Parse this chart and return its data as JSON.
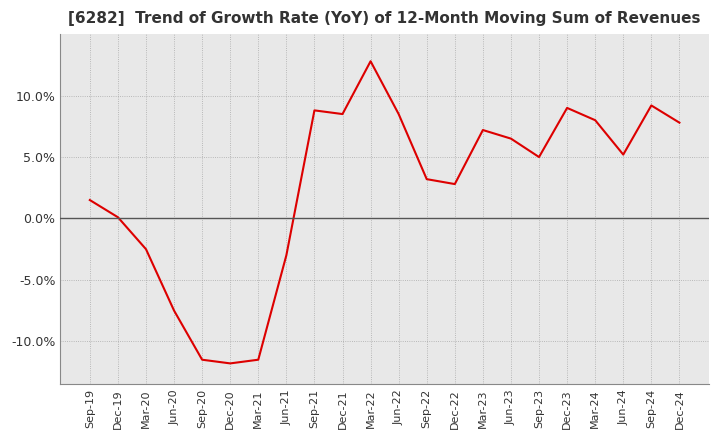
{
  "title": "[6282]  Trend of Growth Rate (YoY) of 12-Month Moving Sum of Revenues",
  "title_fontsize": 11,
  "line_color": "#dd0000",
  "background_color": "#ffffff",
  "plot_bg_color": "#e8e8e8",
  "grid_color": "#999999",
  "zero_line_color": "#555555",
  "x_labels": [
    "Sep-19",
    "Dec-19",
    "Mar-20",
    "Jun-20",
    "Sep-20",
    "Dec-20",
    "Mar-21",
    "Jun-21",
    "Sep-21",
    "Dec-21",
    "Mar-22",
    "Jun-22",
    "Sep-22",
    "Dec-22",
    "Mar-23",
    "Jun-23",
    "Sep-23",
    "Dec-23",
    "Mar-24",
    "Jun-24",
    "Sep-24",
    "Dec-24"
  ],
  "values": [
    1.5,
    0.1,
    -2.5,
    -7.5,
    -11.5,
    -11.8,
    -11.5,
    -3.0,
    8.8,
    8.5,
    12.8,
    8.5,
    3.2,
    2.8,
    7.2,
    6.5,
    5.0,
    9.0,
    8.0,
    5.2,
    9.2,
    7.8
  ],
  "ylim": [
    -13.5,
    15.0
  ],
  "yticks": [
    -10.0,
    -5.0,
    0.0,
    5.0,
    10.0
  ],
  "yticklabels": [
    "-10.0%",
    "-5.0%",
    "0.0%",
    "5.0%",
    "10.0%"
  ]
}
